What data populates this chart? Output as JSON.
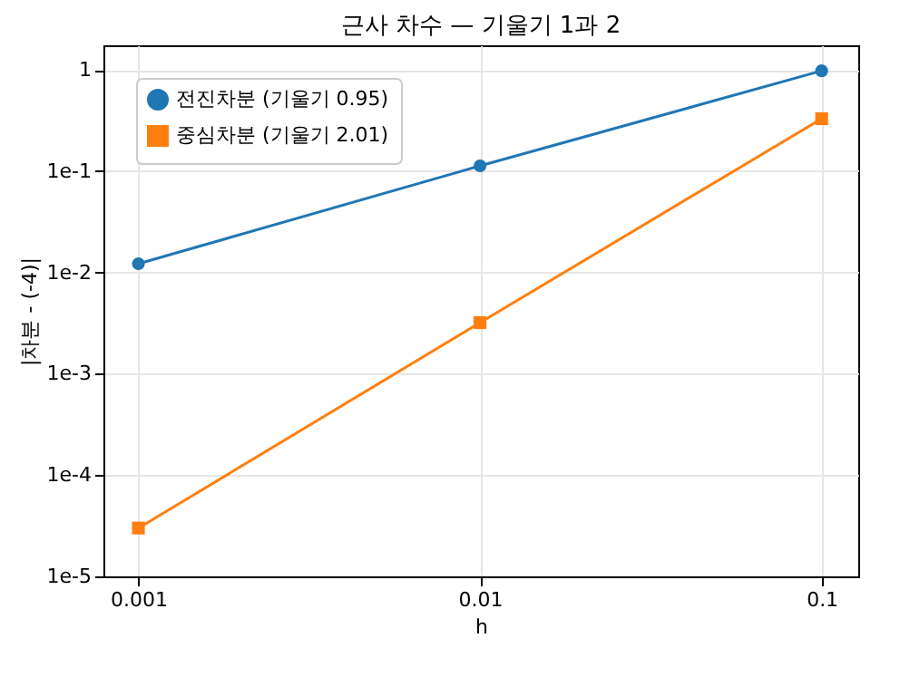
{
  "chart_data": {
    "type": "line",
    "title": "근사 차수 — 기울기 1과 2",
    "xlabel": "h",
    "ylabel": "|차분 - (-4)|",
    "x": [
      0.001,
      0.01,
      0.1
    ],
    "series": [
      {
        "name": "전진차분 (기울기 0.95)",
        "color": "#1f77b4",
        "marker": "circle",
        "values": [
          0.0122,
          0.113,
          0.98
        ]
      },
      {
        "name": "중심차분 (기울기 2.01)",
        "color": "#ff7f0e",
        "marker": "square",
        "values": [
          3e-05,
          0.0032,
          0.33
        ]
      }
    ],
    "log": "xy",
    "xlim": [
      0.00079,
      0.128
    ],
    "ylim": [
      1e-05,
      1.75
    ],
    "xticks": [
      0.001,
      0.01,
      0.1
    ],
    "yticks": [
      {
        "value": 1e-05,
        "label": "1e-5"
      },
      {
        "value": 0.0001,
        "label": "1e-4"
      },
      {
        "value": 0.001,
        "label": "1e-3"
      },
      {
        "value": 0.01,
        "label": "1e-2"
      },
      {
        "value": 0.1,
        "label": "1e-1"
      },
      {
        "value": 1,
        "label": "1"
      }
    ],
    "grid": true,
    "legend": "top left",
    "line_style": "solid"
  }
}
